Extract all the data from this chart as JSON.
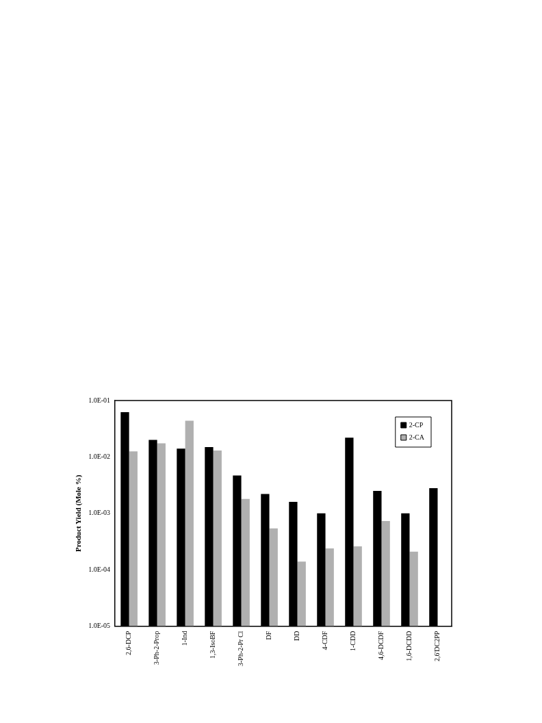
{
  "chart_data": {
    "type": "bar",
    "ylabel": "Product Yield (Mole %)",
    "categories": [
      "2,6-DCP",
      "3-Ph-2-Prop",
      "1-Ind",
      "1,3-IsoBF",
      "3-Ph-2-Pr Cl",
      "DF",
      "DD",
      "4-CDF",
      "1-CDD",
      "4,6-DCDF",
      "1,6-DCDD",
      "2,6'DC2PP"
    ],
    "series": [
      {
        "name": "2-CP",
        "color": "#000000",
        "values": [
          0.062,
          0.02,
          0.014,
          0.015,
          0.0047,
          0.0022,
          0.0016,
          0.001,
          0.022,
          0.0025,
          0.001,
          0.0028
        ]
      },
      {
        "name": "2-CA",
        "color": "#b0b0b0",
        "values": [
          0.0126,
          0.0175,
          0.044,
          0.013,
          0.0018,
          0.00054,
          0.00014,
          0.00024,
          0.00026,
          0.00073,
          0.00021,
          null
        ]
      }
    ],
    "log": "y",
    "ylim": [
      1e-05,
      0.1
    ],
    "yticks": [
      {
        "value": 1e-05,
        "label": "1.0E-05"
      },
      {
        "value": 0.0001,
        "label": "1.0E-04"
      },
      {
        "value": 0.001,
        "label": "1.0E-03"
      },
      {
        "value": 0.01,
        "label": "1.0E-02"
      },
      {
        "value": 0.1,
        "label": "1.0E-01"
      }
    ],
    "grid": false,
    "legend": "top right"
  }
}
